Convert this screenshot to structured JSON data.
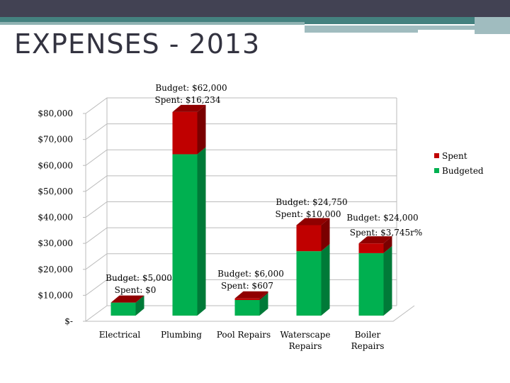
{
  "title": "EXPENSES - 2013",
  "chart_data": {
    "type": "bar",
    "stacked": true,
    "title": "EXPENSES - 2013",
    "categories": [
      "Electrical",
      "Plumbing",
      "Pool Repairs",
      "Waterscape Repairs",
      "Boiler Repairs"
    ],
    "category_lines": [
      [
        "Electrical"
      ],
      [
        "Plumbing"
      ],
      [
        "Pool Repairs"
      ],
      [
        "Waterscape",
        "Repairs"
      ],
      [
        "Boiler",
        "Repairs"
      ]
    ],
    "series": [
      {
        "name": "Budgeted",
        "color": "#00b050",
        "values": [
          5000,
          62000,
          6000,
          24750,
          24000
        ]
      },
      {
        "name": "Spent",
        "color": "#c00000",
        "values": [
          0,
          16234,
          607,
          10000,
          3745
        ]
      }
    ],
    "yticks": [
      "$-",
      "$10,000",
      "$20,000",
      "$30,000",
      "$40,000",
      "$50,000",
      "$60,000",
      "$70,000",
      "$80,000"
    ],
    "ylim": [
      0,
      80000
    ],
    "legend": [
      "Spent",
      "Budgeted"
    ],
    "legend_position": "right",
    "annotations": [
      [
        "Budget:  $5,000",
        "Spent:  $0"
      ],
      [
        "Budget:  $62,000",
        "Spent:  $16,234"
      ],
      [
        "Budget:  $6,000",
        "Spent:  $607"
      ],
      [
        "Budget:  $24,750",
        "Spent:  $10,000"
      ],
      [
        "Budget:  $24,000",
        "Spent:  $3,745r%"
      ]
    ]
  }
}
